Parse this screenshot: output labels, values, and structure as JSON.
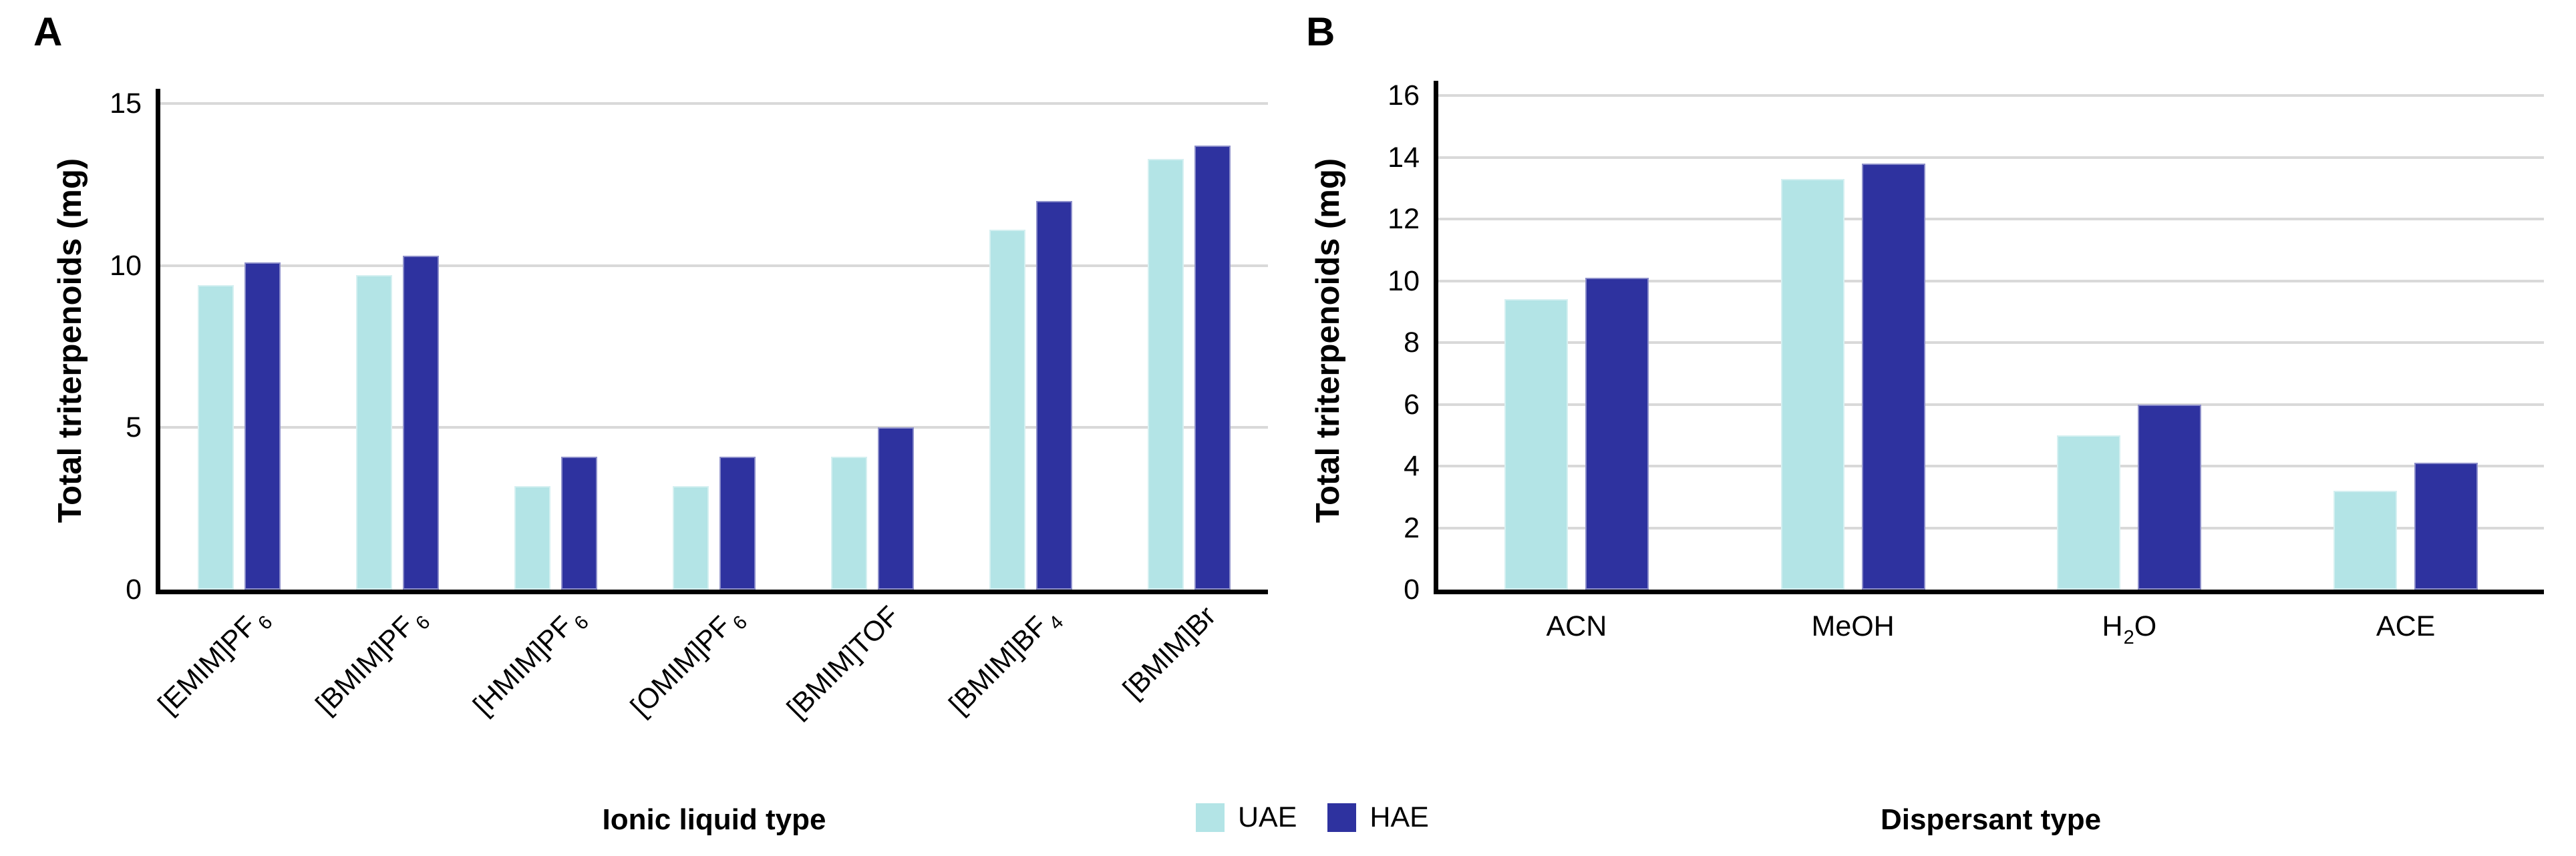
{
  "figure": {
    "background": "#ffffff",
    "panel_labels": [
      "A",
      "B"
    ]
  },
  "legend": {
    "entries": [
      {
        "label": "UAE",
        "color": "#b3e4e6"
      },
      {
        "label": "HAE",
        "color": "#2e329f"
      }
    ]
  },
  "chart_data": [
    {
      "type": "bar",
      "panel": "A",
      "title": "",
      "xlabel": "Ionic liquid type",
      "ylabel": "Total triterpenoids (mg)",
      "ylim": [
        0,
        15
      ],
      "yticks": [
        0,
        5,
        10,
        15
      ],
      "grid": true,
      "legend_position": "bottom-center",
      "categories": [
        "[EMIM]PF6",
        "[BMIM]PF6",
        "[HMIM]PF6",
        "[OMIM]PF6",
        "[BMIM]TOF",
        "[BMIM]BF4",
        "[BMIM]Br"
      ],
      "category_parts": [
        [
          {
            "t": "[EMIM]PF"
          },
          {
            "t": "6",
            "sub": true
          }
        ],
        [
          {
            "t": "[BMIM]PF"
          },
          {
            "t": "6",
            "sub": true
          }
        ],
        [
          {
            "t": "[HMIM]PF"
          },
          {
            "t": "6",
            "sub": true
          }
        ],
        [
          {
            "t": "[OMIM]PF"
          },
          {
            "t": "6",
            "sub": true
          }
        ],
        [
          {
            "t": "[BMIM]TOF"
          }
        ],
        [
          {
            "t": "[BMIM]BF"
          },
          {
            "t": "4",
            "sub": true
          }
        ],
        [
          {
            "t": "[BMIM]Br"
          }
        ]
      ],
      "series": [
        {
          "name": "UAE",
          "color": "#b3e4e6",
          "values": [
            9.4,
            9.7,
            3.2,
            3.2,
            4.1,
            11.1,
            13.3
          ]
        },
        {
          "name": "HAE",
          "color": "#2e329f",
          "values": [
            10.1,
            10.3,
            4.1,
            4.1,
            5.0,
            12.0,
            13.7
          ]
        }
      ]
    },
    {
      "type": "bar",
      "panel": "B",
      "title": "",
      "xlabel": "Dispersant type",
      "ylabel": "Total triterpenoids (mg)",
      "ylim": [
        0,
        16
      ],
      "yticks": [
        0,
        2,
        4,
        6,
        8,
        10,
        12,
        14,
        16
      ],
      "grid": true,
      "legend_position": "bottom-center",
      "categories": [
        "ACN",
        "MeOH",
        "H2O",
        "ACE"
      ],
      "category_parts": [
        [
          {
            "t": "ACN"
          }
        ],
        [
          {
            "t": "MeOH"
          }
        ],
        [
          {
            "t": "H"
          },
          {
            "t": "2",
            "sub": true,
            "tight": true
          },
          {
            "t": "O"
          }
        ],
        [
          {
            "t": "ACE"
          }
        ]
      ],
      "series": [
        {
          "name": "UAE",
          "color": "#b3e4e6",
          "values": [
            9.4,
            13.3,
            5.0,
            3.2
          ]
        },
        {
          "name": "HAE",
          "color": "#2e329f",
          "values": [
            10.1,
            13.8,
            6.0,
            4.1
          ]
        }
      ]
    }
  ],
  "colors": {
    "uae": "#b3e4e6",
    "hae": "#2e329f",
    "gridline": "#d9d9d9",
    "axis": "#000000",
    "text": "#000000",
    "background": "#ffffff"
  }
}
